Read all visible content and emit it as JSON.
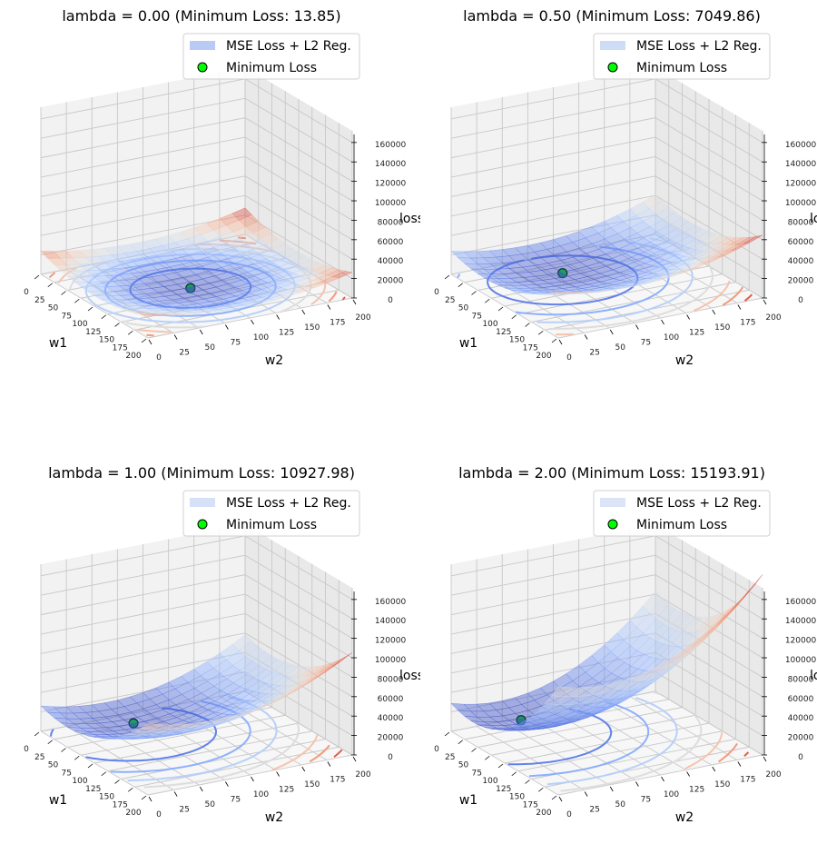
{
  "chart_data": [
    {
      "type": "surface3d",
      "title": "lambda = 0.00 (Minimum Loss: 13.85)",
      "lambda": 0.0,
      "min_loss": 13.85,
      "min_point": {
        "w1": 102,
        "w2": 93
      },
      "xlabel": "w1",
      "ylabel": "w2",
      "zlabel": "loss",
      "xlim": [
        0,
        200
      ],
      "ylim": [
        0,
        200
      ],
      "zlim": [
        0,
        172000
      ],
      "x_ticks": [
        "0",
        "25",
        "50",
        "75",
        "100",
        "125",
        "150",
        "175",
        "200"
      ],
      "y_ticks": [
        "0",
        "25",
        "50",
        "75",
        "100",
        "125",
        "150",
        "175",
        "200"
      ],
      "z_ticks": [
        "0",
        "20000",
        "40000",
        "60000",
        "80000",
        "100000",
        "120000",
        "140000",
        "160000"
      ],
      "legend": [
        "MSE Loss + L2 Reg.",
        "Minimum Loss"
      ],
      "legend_position": "top-right",
      "colormap": "coolwarm",
      "surface_patch_color": "#b9cbf5",
      "marker_color": "#00ff00"
    },
    {
      "type": "surface3d",
      "title": "lambda = 0.50 (Minimum Loss: 7049.86)",
      "lambda": 0.5,
      "min_loss": 7049.86,
      "min_point": {
        "w1": 65,
        "w2": 75
      },
      "xlabel": "w1",
      "ylabel": "w2",
      "zlabel": "loss",
      "xlim": [
        0,
        200
      ],
      "ylim": [
        0,
        200
      ],
      "zlim": [
        0,
        172000
      ],
      "x_ticks": [
        "0",
        "25",
        "50",
        "75",
        "100",
        "125",
        "150",
        "175",
        "200"
      ],
      "y_ticks": [
        "0",
        "25",
        "50",
        "75",
        "100",
        "125",
        "150",
        "175",
        "200"
      ],
      "z_ticks": [
        "0",
        "20000",
        "40000",
        "60000",
        "80000",
        "100000",
        "120000",
        "140000",
        "160000"
      ],
      "legend": [
        "MSE Loss + L2 Reg.",
        "Minimum Loss"
      ],
      "legend_position": "top-right",
      "colormap": "coolwarm",
      "surface_patch_color": "#cfdcf8",
      "marker_color": "#00ff00"
    },
    {
      "type": "surface3d",
      "title": "lambda = 1.00 (Minimum Loss: 10927.98)",
      "lambda": 1.0,
      "min_loss": 10927.98,
      "min_point": {
        "w1": 49,
        "w2": 65
      },
      "xlabel": "w1",
      "ylabel": "w2",
      "zlabel": "loss",
      "xlim": [
        0,
        200
      ],
      "ylim": [
        0,
        200
      ],
      "zlim": [
        0,
        172000
      ],
      "x_ticks": [
        "0",
        "25",
        "50",
        "75",
        "100",
        "125",
        "150",
        "175",
        "200"
      ],
      "y_ticks": [
        "0",
        "25",
        "50",
        "75",
        "100",
        "125",
        "150",
        "175",
        "200"
      ],
      "z_ticks": [
        "0",
        "20000",
        "40000",
        "60000",
        "80000",
        "100000",
        "120000",
        "140000",
        "160000"
      ],
      "legend": [
        "MSE Loss + L2 Reg.",
        "Minimum Loss"
      ],
      "legend_position": "top-right",
      "colormap": "coolwarm",
      "surface_patch_color": "#d6e1f8",
      "marker_color": "#00ff00"
    },
    {
      "type": "surface3d",
      "title": "lambda = 2.00 (Minimum Loss: 15193.91)",
      "lambda": 2.0,
      "min_loss": 15193.91,
      "min_point": {
        "w1": 41,
        "w2": 47
      },
      "xlabel": "w1",
      "ylabel": "w2",
      "zlabel": "loss",
      "xlim": [
        0,
        200
      ],
      "ylim": [
        0,
        200
      ],
      "zlim": [
        0,
        172000
      ],
      "x_ticks": [
        "0",
        "25",
        "50",
        "75",
        "100",
        "125",
        "150",
        "175",
        "200"
      ],
      "y_ticks": [
        "0",
        "25",
        "50",
        "75",
        "100",
        "125",
        "150",
        "175",
        "200"
      ],
      "z_ticks": [
        "0",
        "20000",
        "40000",
        "60000",
        "80000",
        "100000",
        "120000",
        "140000",
        "160000"
      ],
      "legend": [
        "MSE Loss + L2 Reg.",
        "Minimum Loss"
      ],
      "legend_position": "top-right",
      "colormap": "coolwarm",
      "surface_patch_color": "#dce5f8",
      "marker_color": "#00ff00"
    }
  ]
}
